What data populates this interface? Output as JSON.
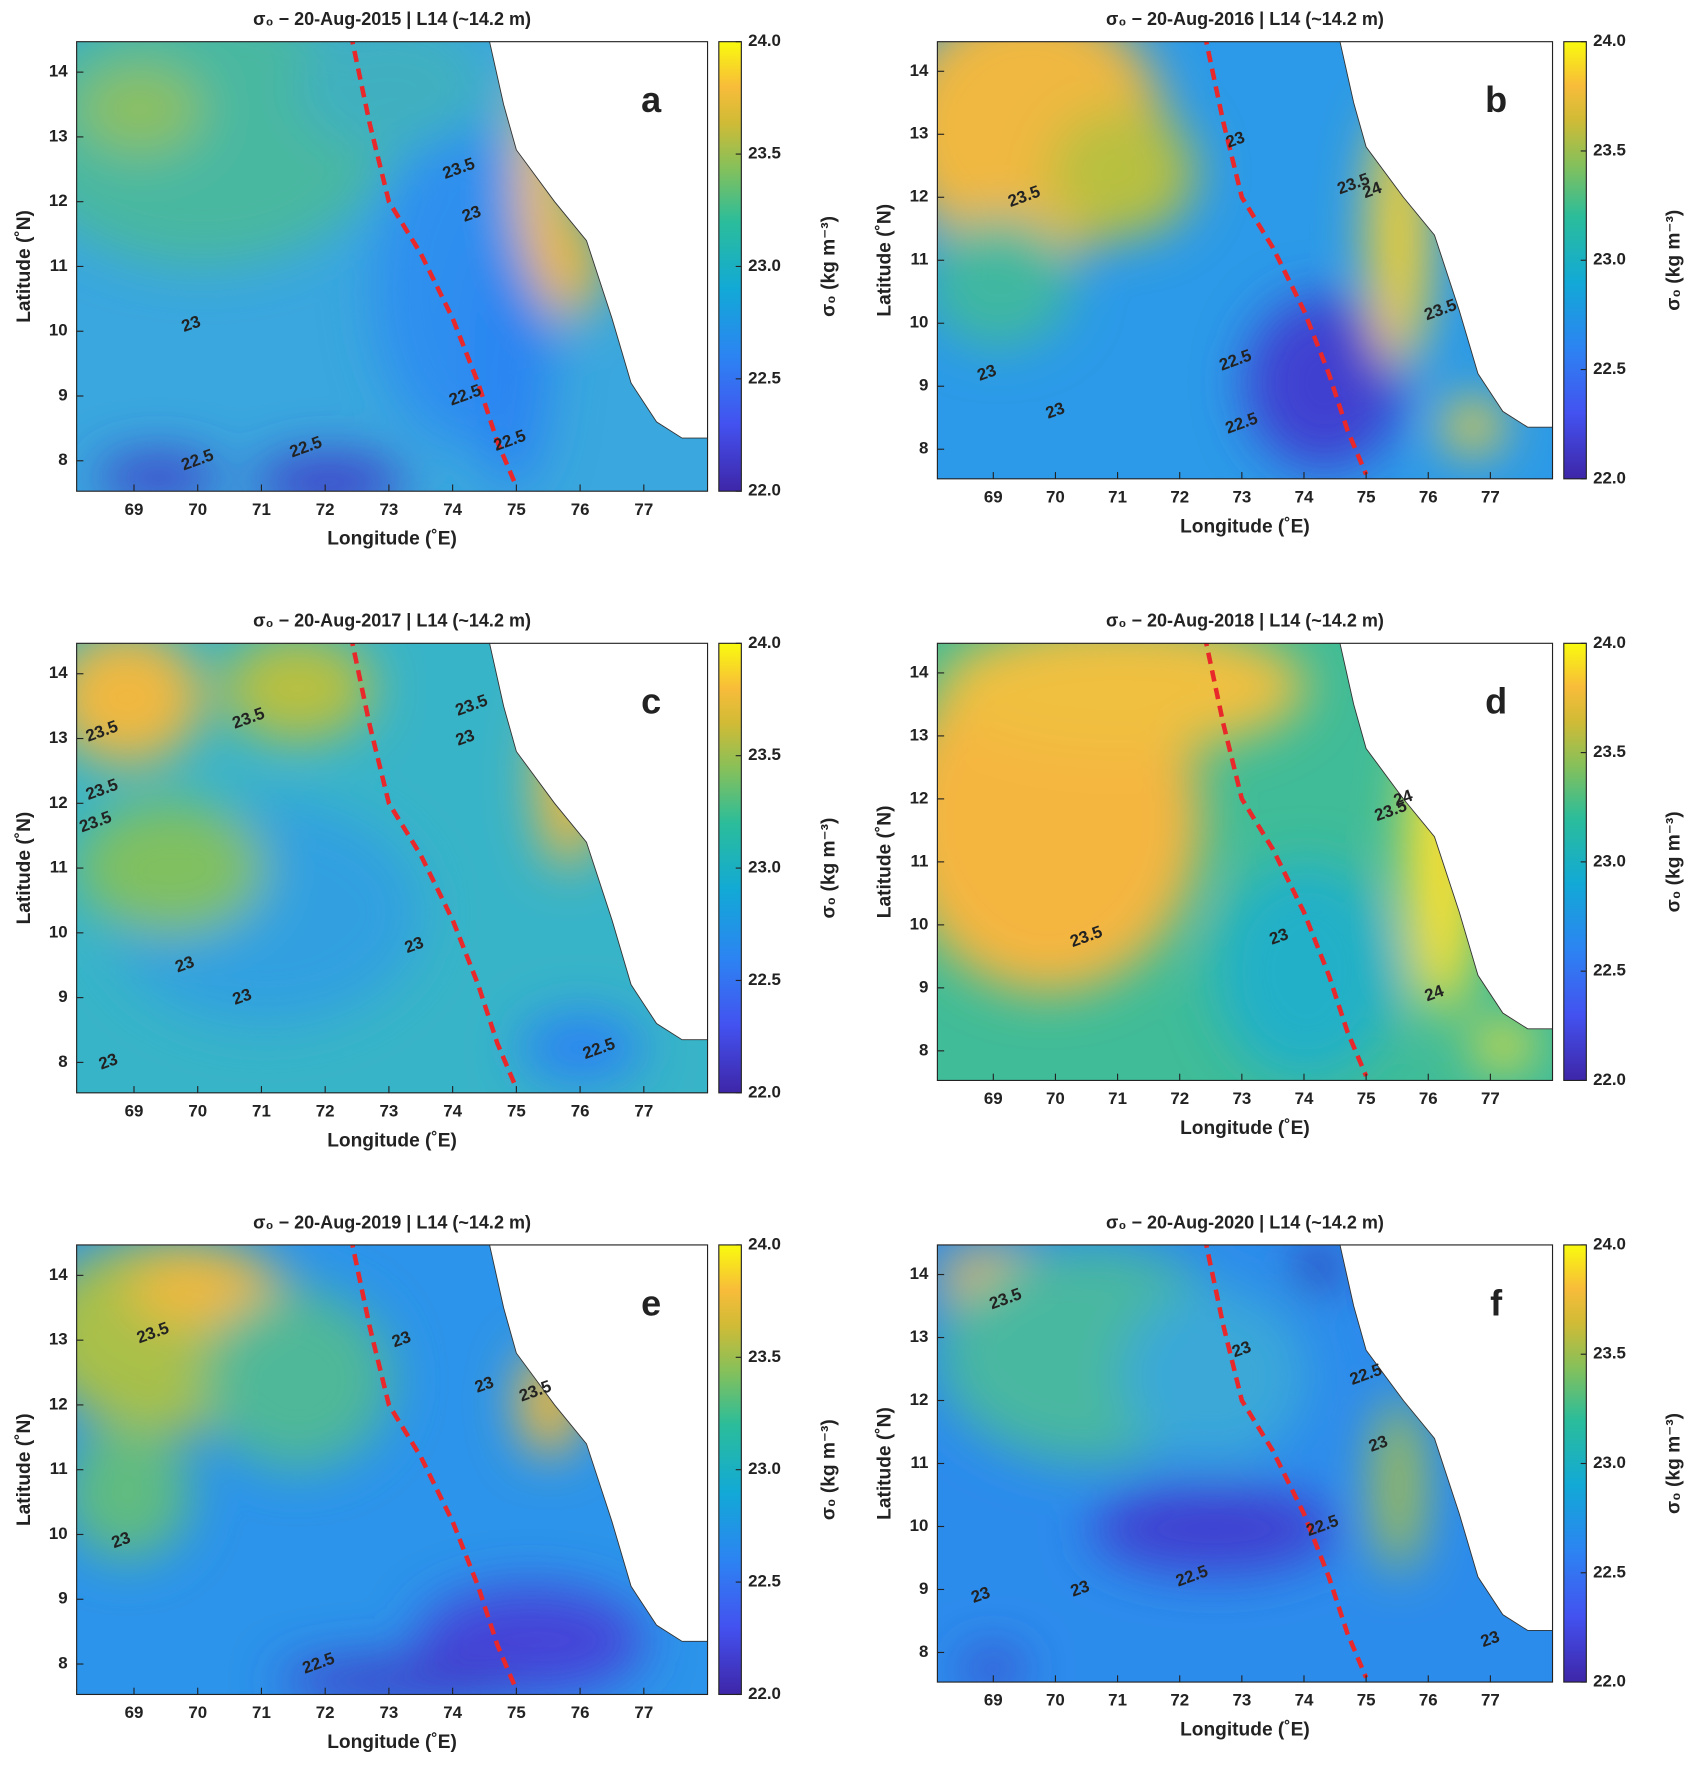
{
  "chart_data": [
    {
      "type": "heatmap",
      "title": "σ₀ − 20-Aug-2015 | L14 (~14.2 m)",
      "xlabel": "Longitude (˚E)",
      "ylabel": "Latitude (˚N)",
      "colorbar_label": "σ₀ (kg m⁻³)",
      "panel_label": "a",
      "xlim": [
        68.1,
        78
      ],
      "ylim": [
        7.53,
        14.47
      ],
      "xticks": [
        69,
        70,
        71,
        72,
        73,
        74,
        75,
        76,
        77
      ],
      "yticks": [
        8,
        9,
        10,
        11,
        12,
        13,
        14
      ],
      "zlim": [
        22,
        24
      ],
      "zticks": [
        {
          "value": 22,
          "label": "22.0"
        },
        {
          "value": 22.5,
          "label": "22.5"
        },
        {
          "value": 23,
          "label": "23.0"
        },
        {
          "value": 23.5,
          "label": "23.5"
        },
        {
          "value": 24,
          "label": "24.0"
        }
      ],
      "contour_labels": [
        23.5,
        23,
        23,
        22.5,
        22.5,
        22.5,
        22.5
      ]
    },
    {
      "type": "heatmap",
      "title": "σ₀ − 20-Aug-2016 | L14 (~14.2 m)",
      "xlabel": "Longitude (˚E)",
      "ylabel": "Latitude (˚N)",
      "colorbar_label": "σ₀ (kg m⁻³)",
      "panel_label": "b",
      "xlim": [
        68.1,
        78
      ],
      "ylim": [
        7.53,
        14.47
      ],
      "xticks": [
        69,
        70,
        71,
        72,
        73,
        74,
        75,
        76,
        77
      ],
      "yticks": [
        8,
        9,
        10,
        11,
        12,
        13,
        14
      ],
      "zlim": [
        22,
        24
      ],
      "zticks": [
        {
          "value": 22,
          "label": "22.0"
        },
        {
          "value": 22.5,
          "label": "22.5"
        },
        {
          "value": 23,
          "label": "23.0"
        },
        {
          "value": 23.5,
          "label": "23.5"
        },
        {
          "value": 24,
          "label": "24.0"
        }
      ],
      "contour_labels": [
        23,
        23.5,
        23.5,
        24,
        23.5,
        22.5,
        23,
        23,
        22.5
      ]
    },
    {
      "type": "heatmap",
      "title": "σ₀ − 20-Aug-2017 | L14 (~14.2 m)",
      "xlabel": "Longitude (˚E)",
      "ylabel": "Latitude (˚N)",
      "colorbar_label": "σ₀ (kg m⁻³)",
      "panel_label": "c",
      "xlim": [
        68.1,
        78
      ],
      "ylim": [
        7.53,
        14.47
      ],
      "xticks": [
        69,
        70,
        71,
        72,
        73,
        74,
        75,
        76,
        77
      ],
      "yticks": [
        8,
        9,
        10,
        11,
        12,
        13,
        14
      ],
      "zlim": [
        22,
        24
      ],
      "zticks": [
        {
          "value": 22,
          "label": "22.0"
        },
        {
          "value": 22.5,
          "label": "22.5"
        },
        {
          "value": 23,
          "label": "23.0"
        },
        {
          "value": 23.5,
          "label": "23.5"
        },
        {
          "value": 24,
          "label": "24.0"
        }
      ],
      "contour_labels": [
        23.5,
        23.5,
        23.5,
        23.5,
        23.5,
        23,
        23,
        23,
        23,
        22.5,
        23
      ]
    },
    {
      "type": "heatmap",
      "title": "σ₀ − 20-Aug-2018 | L14 (~14.2 m)",
      "xlabel": "Longitude (˚E)",
      "ylabel": "Latitude (˚N)",
      "colorbar_label": "σ₀ (kg m⁻³)",
      "panel_label": "d",
      "xlim": [
        68.1,
        78
      ],
      "ylim": [
        7.53,
        14.47
      ],
      "xticks": [
        69,
        70,
        71,
        72,
        73,
        74,
        75,
        76,
        77
      ],
      "yticks": [
        8,
        9,
        10,
        11,
        12,
        13,
        14
      ],
      "zlim": [
        22,
        24
      ],
      "zticks": [
        {
          "value": 22,
          "label": "22.0"
        },
        {
          "value": 22.5,
          "label": "22.5"
        },
        {
          "value": 23,
          "label": "23.0"
        },
        {
          "value": 23.5,
          "label": "23.5"
        },
        {
          "value": 24,
          "label": "24.0"
        }
      ],
      "contour_labels": [
        23.5,
        23.5,
        24,
        23,
        24
      ]
    },
    {
      "type": "heatmap",
      "title": "σ₀ − 20-Aug-2019 | L14 (~14.2 m)",
      "xlabel": "Longitude (˚E)",
      "ylabel": "Latitude (˚N)",
      "colorbar_label": "σ₀ (kg m⁻³)",
      "panel_label": "e",
      "xlim": [
        68.1,
        78
      ],
      "ylim": [
        7.53,
        14.47
      ],
      "xticks": [
        69,
        70,
        71,
        72,
        73,
        74,
        75,
        76,
        77
      ],
      "yticks": [
        8,
        9,
        10,
        11,
        12,
        13,
        14
      ],
      "zlim": [
        22,
        24
      ],
      "zticks": [
        {
          "value": 22,
          "label": "22.0"
        },
        {
          "value": 22.5,
          "label": "22.5"
        },
        {
          "value": 23,
          "label": "23.0"
        },
        {
          "value": 23.5,
          "label": "23.5"
        },
        {
          "value": 24,
          "label": "24.0"
        }
      ],
      "contour_labels": [
        23.5,
        23,
        23,
        23.5,
        23,
        22.5
      ]
    },
    {
      "type": "heatmap",
      "title": "σ₀ − 20-Aug-2020 | L14 (~14.2 m)",
      "xlabel": "Longitude (˚E)",
      "ylabel": "Latitude (˚N)",
      "colorbar_label": "σ₀ (kg m⁻³)",
      "panel_label": "f",
      "xlim": [
        68.1,
        78
      ],
      "ylim": [
        7.53,
        14.47
      ],
      "xticks": [
        69,
        70,
        71,
        72,
        73,
        74,
        75,
        76,
        77
      ],
      "yticks": [
        8,
        9,
        10,
        11,
        12,
        13,
        14
      ],
      "zlim": [
        22,
        24
      ],
      "zticks": [
        {
          "value": 22,
          "label": "22.0"
        },
        {
          "value": 22.5,
          "label": "22.5"
        },
        {
          "value": 23,
          "label": "23.0"
        },
        {
          "value": 23.5,
          "label": "23.5"
        },
        {
          "value": 24,
          "label": "24.0"
        }
      ],
      "contour_labels": [
        23.5,
        23,
        22.5,
        23,
        22.5,
        22.5,
        23,
        23,
        23
      ]
    }
  ]
}
